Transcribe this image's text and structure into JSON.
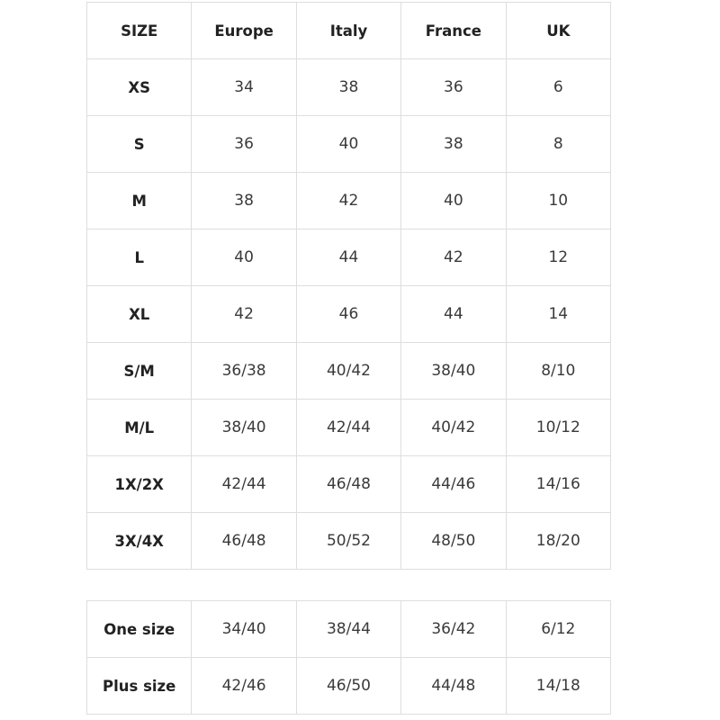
{
  "tables": [
    {
      "header": [
        "SIZE",
        "Europe",
        "Italy",
        "France",
        "UK"
      ],
      "rows": [
        [
          "XS",
          "34",
          "38",
          "36",
          "6"
        ],
        [
          "S",
          "36",
          "40",
          "38",
          "8"
        ],
        [
          "M",
          "38",
          "42",
          "40",
          "10"
        ],
        [
          "L",
          "40",
          "44",
          "42",
          "12"
        ],
        [
          "XL",
          "42",
          "46",
          "44",
          "14"
        ],
        [
          "S/M",
          "36/38",
          "40/42",
          "38/40",
          "8/10"
        ],
        [
          "M/L",
          "38/40",
          "42/44",
          "40/42",
          "10/12"
        ],
        [
          "1X/2X",
          "42/44",
          "46/48",
          "44/46",
          "14/16"
        ],
        [
          "3X/4X",
          "46/48",
          "50/52",
          "48/50",
          "18/20"
        ]
      ]
    },
    {
      "rows": [
        [
          "One size",
          "34/40",
          "38/44",
          "36/42",
          "6/12"
        ],
        [
          "Plus size",
          "42/46",
          "46/50",
          "44/48",
          "14/18"
        ]
      ]
    }
  ]
}
